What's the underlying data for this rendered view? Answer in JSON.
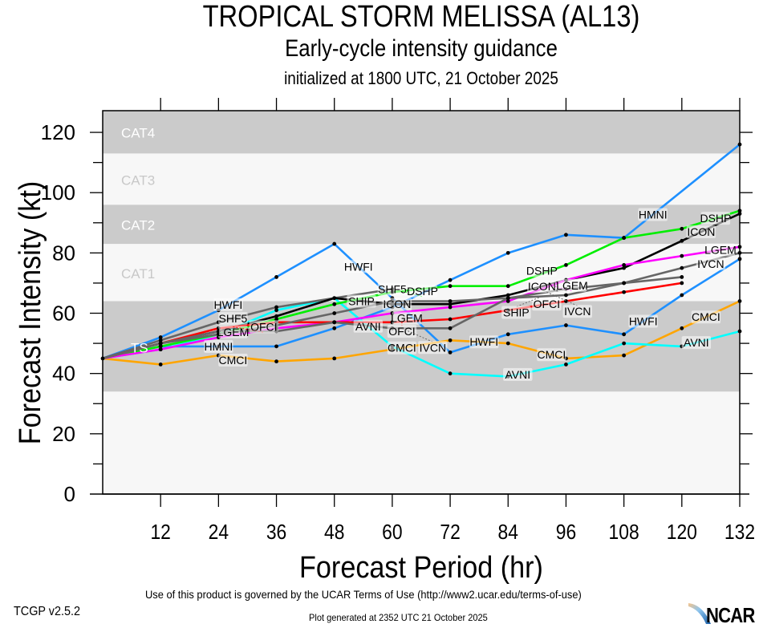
{
  "chart_data": {
    "type": "line",
    "title": "TROPICAL STORM MELISSA (AL13)",
    "subtitle": "Early-cycle intensity guidance",
    "subtitle2": "initialized at 1800 UTC, 21 October 2025",
    "xlabel": "Forecast Period (hr)",
    "ylabel": "Forecast Intensity (kt)",
    "xlim": [
      0,
      132
    ],
    "ylim": [
      0,
      127
    ],
    "x_ticks": [
      12,
      24,
      36,
      48,
      60,
      72,
      84,
      96,
      108,
      120,
      132
    ],
    "y_ticks": [
      0,
      20,
      40,
      60,
      80,
      100,
      120
    ],
    "grid": false,
    "category_bands": [
      {
        "label": "TS",
        "range": [
          34,
          64
        ],
        "shade": "dark"
      },
      {
        "label": "CAT1",
        "range": [
          64,
          83
        ],
        "shade": "light"
      },
      {
        "label": "CAT2",
        "range": [
          83,
          96
        ],
        "shade": "dark"
      },
      {
        "label": "CAT3",
        "range": [
          96,
          113
        ],
        "shade": "light"
      },
      {
        "label": "CAT4",
        "range": [
          113,
          137
        ],
        "shade": "dark"
      }
    ],
    "x": [
      0,
      12,
      24,
      36,
      48,
      60,
      72,
      84,
      96,
      108,
      120,
      132
    ],
    "series": [
      {
        "name": "HMNI",
        "color": "#1e90ff",
        "values": [
          45,
          49,
          49,
          49,
          55,
          62,
          71,
          80,
          86,
          85,
          null,
          116
        ],
        "label_at": [
          24,
          114
        ]
      },
      {
        "name": "HWFI",
        "color": "#1e90ff",
        "values": [
          45,
          52,
          61,
          72,
          83,
          65,
          47,
          53,
          56,
          53,
          66,
          78
        ],
        "label_at": [
          26,
          53,
          79,
          112
        ]
      },
      {
        "name": "CMCI",
        "color": "#ffa500",
        "values": [
          45,
          43,
          46,
          44,
          45,
          48,
          51,
          50,
          45,
          46,
          55,
          64
        ],
        "label_at": [
          27,
          62,
          93,
          125
        ]
      },
      {
        "name": "AVNI",
        "color": "#00ffff",
        "values": [
          45,
          48,
          53,
          61,
          65,
          49,
          40,
          39,
          43,
          50,
          49,
          54
        ],
        "label_at": [
          55,
          86,
          123
        ]
      },
      {
        "name": "SHF5",
        "color": "#666666",
        "values": [
          45,
          51,
          57,
          62,
          65,
          68,
          null,
          null,
          null,
          null,
          null,
          null
        ],
        "label_at": [
          27,
          60
        ]
      },
      {
        "name": "ICON",
        "color": "#000000",
        "values": [
          45,
          50,
          54,
          59,
          65,
          63,
          63,
          66,
          71,
          75,
          84,
          93
        ],
        "label_at": [
          61,
          91,
          124
        ]
      },
      {
        "name": "DSHP",
        "color": "#00ee00",
        "values": [
          45,
          49,
          53,
          58,
          63,
          67,
          69,
          69,
          76,
          85,
          88,
          94
        ],
        "label_at": [
          62,
          91,
          127
        ]
      },
      {
        "name": "LGEM",
        "color": "#ff00ff",
        "values": [
          45,
          48,
          52,
          55,
          57,
          60,
          62,
          64,
          71,
          76,
          79,
          82
        ],
        "label_at": [
          27,
          63,
          93,
          128
        ]
      },
      {
        "name": "OFCI",
        "color": "#ff0000",
        "values": [
          45,
          50,
          55,
          57,
          57,
          57,
          58,
          61,
          64,
          67,
          70,
          null
        ],
        "label_at": [
          27,
          62,
          92
        ]
      },
      {
        "name": "IVCN",
        "color": "#666666",
        "values": [
          45,
          50,
          54,
          54,
          57,
          55,
          55,
          65,
          68,
          70,
          75,
          80
        ],
        "label_at": [
          62,
          92,
          126
        ]
      },
      {
        "name": "SHIP",
        "color": "#666666",
        "values": [
          45,
          50,
          53,
          56,
          60,
          64,
          64,
          65,
          66,
          70,
          72,
          null
        ],
        "label_at": [
          60,
          91
        ]
      }
    ]
  },
  "footer": {
    "terms": "Use of this product is governed by the UCAR Terms of Use (http://www2.ucar.edu/terms-of-use)",
    "generated": "Plot generated at 2352 UTC   21 October 2025",
    "version": "TCGP v2.5.2",
    "logo_text": "NCAR"
  }
}
